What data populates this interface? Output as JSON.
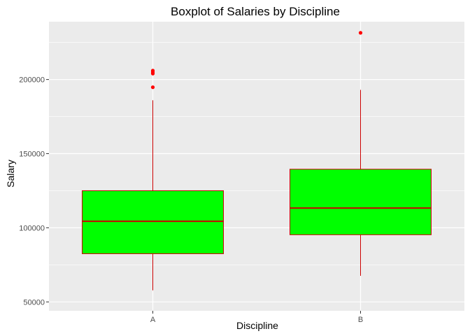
{
  "chart_data": {
    "type": "boxplot",
    "title": "Boxplot of Salaries by Discipline",
    "xlabel": "Discipline",
    "ylabel": "Salary",
    "categories": [
      "A",
      "B"
    ],
    "boxes": [
      {
        "category": "A",
        "whisker_low": 57800,
        "q1": 82500,
        "median": 104400,
        "q3": 125000,
        "whisker_high": 186000,
        "outliers": [
          194800,
          204000,
          205000,
          206000
        ]
      },
      {
        "category": "B",
        "whisker_low": 67600,
        "q1": 95300,
        "median": 113300,
        "q3": 139500,
        "whisker_high": 193000,
        "outliers": [
          231500
        ]
      }
    ],
    "yticks": [
      50000,
      100000,
      150000,
      200000
    ],
    "ytick_labels": [
      "50000",
      "100000",
      "150000",
      "200000"
    ],
    "ylim": [
      44000,
      239000
    ],
    "grid": true,
    "colors": {
      "panel": "#ebebeb",
      "grid": "#ffffff",
      "box_fill": "#00ff00",
      "box_line": "#cc0000",
      "outlier": "#ff0000"
    }
  }
}
